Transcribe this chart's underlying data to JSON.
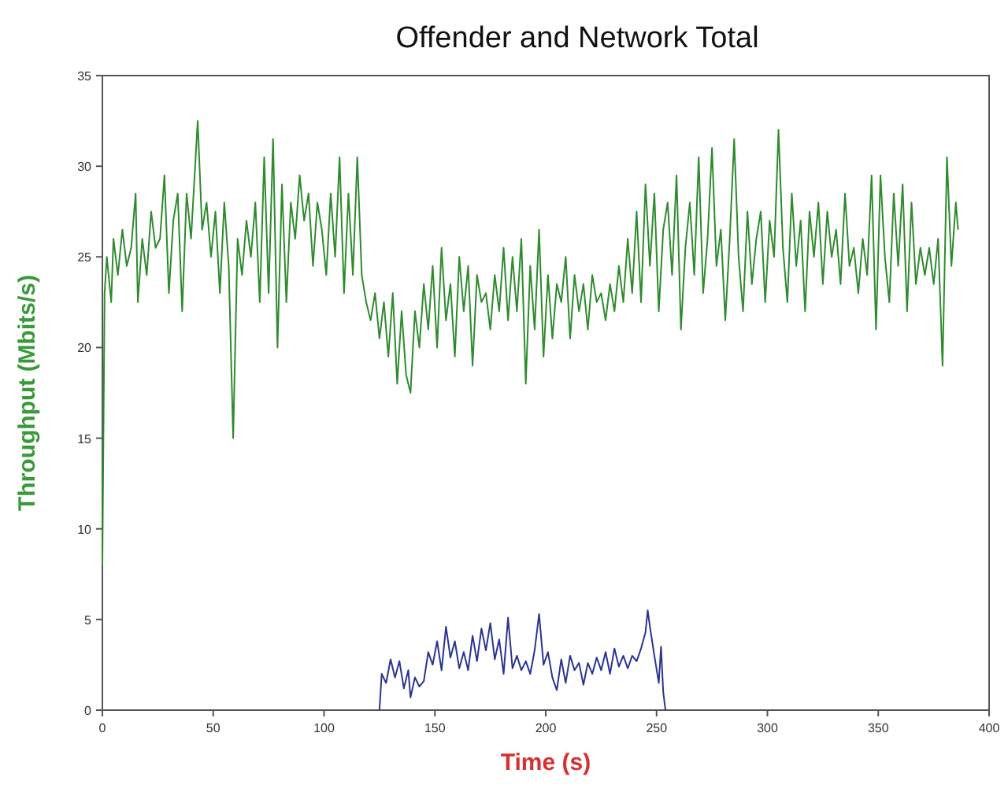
{
  "chart_data": {
    "type": "line",
    "title": "Offender and Network Total",
    "xlabel": "Time (s)",
    "ylabel": "Throughput (Mbits/s)",
    "xlim": [
      0,
      400
    ],
    "xticks": [
      0,
      50,
      100,
      150,
      200,
      250,
      300,
      350,
      400
    ],
    "ylim": [
      0,
      35
    ],
    "yticks": [
      0,
      5,
      10,
      15,
      20,
      25,
      30,
      35
    ],
    "grid": false,
    "marker": "none",
    "line_style": "solid",
    "series": [
      {
        "color": "#2e8b2e",
        "x": [
          0,
          1,
          2,
          4,
          5,
          7,
          9,
          11,
          13,
          15,
          16,
          18,
          20,
          22,
          24,
          26,
          28,
          30,
          32,
          34,
          36,
          38,
          40,
          43,
          45,
          47,
          49,
          51,
          53,
          55,
          57,
          59,
          61,
          63,
          65,
          67,
          69,
          71,
          73,
          75,
          77,
          79,
          81,
          83,
          85,
          87,
          89,
          91,
          93,
          95,
          97,
          99,
          101,
          103,
          105,
          107,
          109,
          111,
          113,
          115,
          117,
          119,
          121,
          123,
          125,
          127,
          129,
          131,
          133,
          135,
          137,
          139,
          141,
          143,
          145,
          147,
          149,
          151,
          153,
          155,
          157,
          159,
          161,
          163,
          165,
          167,
          169,
          171,
          173,
          175,
          177,
          179,
          181,
          183,
          185,
          187,
          189,
          191,
          193,
          195,
          197,
          199,
          201,
          203,
          205,
          207,
          209,
          211,
          213,
          215,
          217,
          219,
          221,
          223,
          225,
          227,
          229,
          231,
          233,
          235,
          237,
          239,
          241,
          243,
          245,
          247,
          249,
          251,
          253,
          255,
          257,
          259,
          261,
          263,
          265,
          267,
          269,
          271,
          273,
          275,
          277,
          279,
          281,
          283,
          285,
          287,
          289,
          291,
          293,
          295,
          297,
          299,
          301,
          303,
          305,
          307,
          309,
          311,
          313,
          315,
          317,
          319,
          321,
          323,
          325,
          327,
          329,
          331,
          333,
          335,
          337,
          339,
          341,
          343,
          345,
          347,
          349,
          351,
          353,
          355,
          357,
          359,
          361,
          363,
          365,
          367,
          369,
          371,
          373,
          375,
          377,
          379,
          381,
          383,
          385,
          386
        ],
        "values": [
          8,
          23,
          25,
          22.5,
          26,
          24,
          26.5,
          24.5,
          25.5,
          28.5,
          22.5,
          26,
          24,
          27.5,
          25.5,
          26,
          29.5,
          23,
          27,
          28.5,
          22,
          28.5,
          26,
          32.5,
          26.5,
          28,
          25,
          27.5,
          23,
          28,
          24.5,
          15,
          26,
          24,
          27,
          25,
          28,
          22.5,
          30.5,
          23,
          31.5,
          20,
          29,
          22.5,
          28,
          26,
          29.5,
          27,
          28.5,
          24.5,
          28,
          26.5,
          24,
          28.5,
          25,
          30.5,
          23,
          28.5,
          24,
          30.5,
          24,
          22.5,
          21.5,
          23,
          20.5,
          22.5,
          19.5,
          23,
          18,
          22,
          18.5,
          17.5,
          22,
          20,
          23.5,
          21,
          24.5,
          20,
          25.5,
          21.5,
          23.5,
          19.5,
          25,
          22,
          24.5,
          19,
          24,
          22.5,
          23,
          21,
          24,
          22,
          25.5,
          21.5,
          25,
          22,
          26,
          18,
          24.5,
          21,
          26.5,
          19.5,
          24,
          20.5,
          23.5,
          22.5,
          25,
          20.5,
          24,
          22,
          23.5,
          21,
          24,
          22.5,
          23,
          21.5,
          23.5,
          22,
          24.5,
          22.5,
          26,
          23,
          27.5,
          22.5,
          29,
          24.5,
          28.5,
          22,
          26.5,
          28,
          24,
          29.5,
          21,
          25.5,
          28,
          24,
          30.5,
          23,
          26,
          31,
          24.5,
          26.5,
          21.5,
          26,
          31.5,
          25,
          22,
          27.5,
          23.5,
          26,
          27.5,
          22.5,
          27,
          25,
          32,
          25.5,
          22.5,
          28.5,
          24.5,
          27,
          22,
          27.5,
          25,
          28,
          23.5,
          27.5,
          25,
          26.5,
          23.5,
          28.5,
          24.5,
          25.5,
          23,
          26,
          24,
          29.5,
          21,
          29.5,
          25,
          22.5,
          28.5,
          24.5,
          29,
          22,
          28,
          23.5,
          25.5,
          24,
          25.5,
          23.5,
          26,
          19,
          30.5,
          24.5,
          28,
          26.5
        ]
      },
      {
        "color": "#2a3591",
        "x": [
          125,
          126,
          128,
          130,
          132,
          134,
          136,
          138,
          139,
          141,
          143,
          145,
          147,
          149,
          151,
          153,
          155,
          157,
          159,
          161,
          163,
          165,
          167,
          169,
          171,
          173,
          175,
          177,
          179,
          181,
          183,
          185,
          187,
          189,
          191,
          193,
          195,
          197,
          199,
          201,
          203,
          205,
          207,
          209,
          211,
          213,
          215,
          217,
          219,
          221,
          223,
          225,
          227,
          229,
          231,
          233,
          235,
          237,
          239,
          241,
          243,
          245,
          246,
          247,
          249,
          251,
          252,
          253,
          254
        ],
        "values": [
          0,
          2,
          1.5,
          2.8,
          1.8,
          2.7,
          1.2,
          2.2,
          0.7,
          1.8,
          1.3,
          1.6,
          3.2,
          2.5,
          3.8,
          2.2,
          4.6,
          2.9,
          3.8,
          2.3,
          3.2,
          2.2,
          4.1,
          2.7,
          4.5,
          3.3,
          4.8,
          2.8,
          3.9,
          2,
          5.1,
          2.3,
          3,
          2.2,
          2.7,
          2,
          3.3,
          5.3,
          2.5,
          3.2,
          1.8,
          1.1,
          2.8,
          1.5,
          3,
          2.2,
          2.6,
          1.4,
          2.6,
          2,
          2.9,
          2.2,
          3.2,
          2,
          3.4,
          2.4,
          3,
          2.3,
          3,
          2.7,
          3.4,
          4.3,
          5.5,
          4.6,
          3,
          1.5,
          3.5,
          1,
          0
        ]
      }
    ]
  }
}
